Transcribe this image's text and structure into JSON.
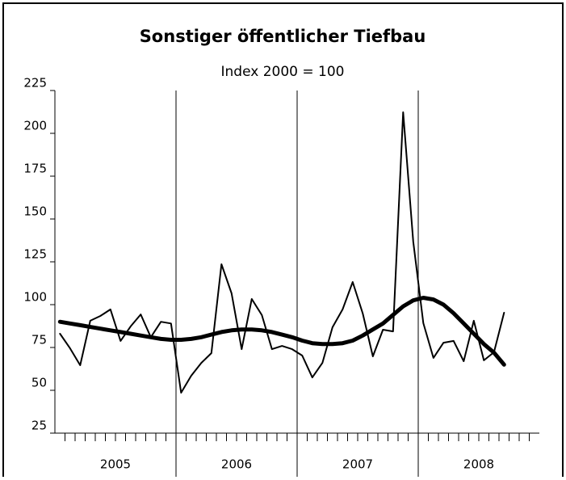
{
  "chart_data": {
    "type": "line",
    "title": "Sonstiger öffentlicher Tiefbau",
    "subtitle": "Index 2000 = 100",
    "categories": [
      null,
      null,
      null,
      null,
      null,
      null,
      null,
      null,
      null,
      null,
      null,
      null,
      null,
      null,
      null,
      null,
      null,
      null,
      null,
      null,
      null,
      null,
      null,
      null,
      null,
      null,
      null,
      null,
      null,
      null,
      null,
      null,
      null,
      null,
      null,
      null,
      null,
      null,
      null,
      null,
      null,
      null,
      null,
      null,
      null,
      null,
      null,
      null
    ],
    "groups": [
      "2005",
      "2006",
      "2007",
      "2008"
    ],
    "series": [
      {
        "color": "#000000",
        "width": 2,
        "values": [
          83,
          74.5,
          64.6,
          90.6,
          93.4,
          97.2,
          78.8,
          87.3,
          94.3,
          81,
          90,
          89,
          48.6,
          58.5,
          66,
          71.7,
          123.6,
          106.6,
          74,
          103.3,
          93.9,
          74,
          75.9,
          74,
          70.3,
          57.5,
          66,
          86.8,
          97.2,
          113.2,
          94.8,
          69.8,
          85.4,
          84.4,
          212.3,
          136.8,
          89.2,
          68.9,
          77.8,
          78.8,
          67,
          90.6,
          67.5,
          72.2,
          95.3,
          null,
          null,
          null
        ]
      },
      {
        "color": "#000000",
        "width": 5,
        "values": [
          90,
          89,
          88,
          87,
          86,
          85,
          84,
          83,
          82,
          81,
          80,
          79.5,
          79.5,
          80,
          81,
          82.5,
          84,
          85,
          85.5,
          85.5,
          85,
          84,
          82.5,
          81,
          79,
          77.5,
          77,
          77,
          77.5,
          79,
          82,
          85.5,
          89,
          94,
          99,
          102.5,
          104,
          103,
          100,
          95,
          89,
          83,
          77,
          72,
          65,
          null,
          null,
          null
        ]
      }
    ],
    "ylim": [
      25,
      225
    ],
    "yticks": [
      25,
      50,
      75,
      100,
      125,
      150,
      175,
      200,
      225
    ]
  }
}
